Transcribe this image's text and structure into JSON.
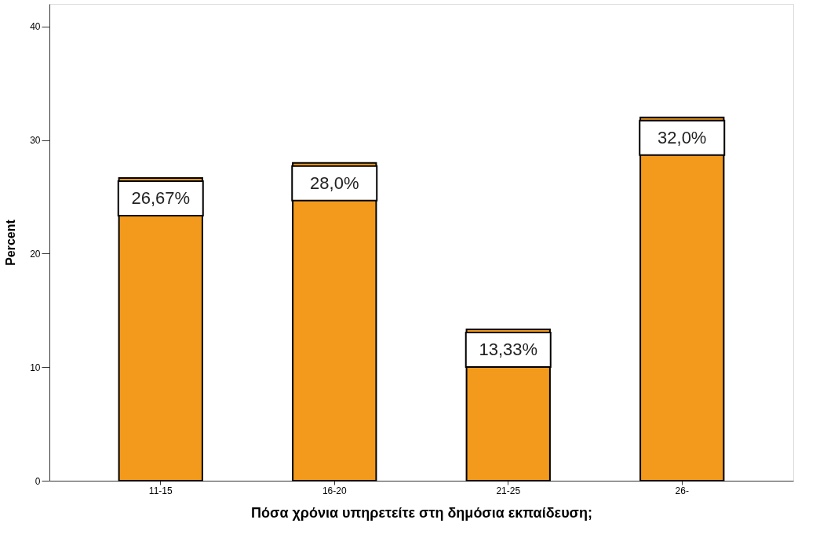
{
  "chart_data": {
    "type": "bar",
    "xlabel": "Πόσα χρόνια υπηρετείτε στη δημόσια εκπαίδευση;",
    "ylabel": "Percent",
    "categories": [
      "11-15",
      "16-20",
      "21-25",
      "26-"
    ],
    "values": [
      26.67,
      28.0,
      13.33,
      32.0
    ],
    "value_labels": [
      "26,67%",
      "28,0%",
      "13,33%",
      "32,0%"
    ],
    "color": "#f39a1c",
    "ylim": [
      0,
      42
    ],
    "yticks": [
      0,
      10,
      20,
      30,
      40
    ],
    "grid": false
  }
}
